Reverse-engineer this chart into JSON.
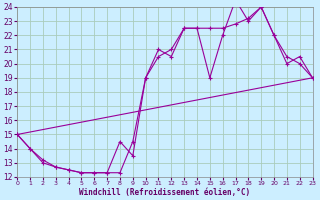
{
  "xlabel": "Windchill (Refroidissement éolien,°C)",
  "bg_color": "#cceeff",
  "grid_color": "#aaccbb",
  "line_color": "#990099",
  "xlim": [
    0,
    23
  ],
  "ylim": [
    12,
    24
  ],
  "xticks": [
    0,
    1,
    2,
    3,
    4,
    5,
    6,
    7,
    8,
    9,
    10,
    11,
    12,
    13,
    14,
    15,
    16,
    17,
    18,
    19,
    20,
    21,
    22,
    23
  ],
  "yticks": [
    12,
    13,
    14,
    15,
    16,
    17,
    18,
    19,
    20,
    21,
    22,
    23,
    24
  ],
  "series1_x": [
    0,
    1,
    2,
    3,
    4,
    5,
    6,
    7,
    8,
    9,
    10,
    11,
    12,
    13,
    14,
    15,
    16,
    17,
    18,
    19,
    20,
    21,
    22,
    23
  ],
  "series1_y": [
    15,
    14,
    13.2,
    12.7,
    12.5,
    12.3,
    12.3,
    12.3,
    12.3,
    14.5,
    19,
    20.5,
    21,
    22.5,
    22.5,
    22.5,
    22.5,
    22.8,
    23.2,
    24,
    22,
    20.5,
    20,
    19
  ],
  "series2_x": [
    0,
    1,
    2,
    3,
    4,
    5,
    6,
    7,
    8,
    9,
    10,
    11,
    12,
    13,
    14,
    15,
    16,
    17,
    18,
    19,
    20,
    21,
    22,
    23
  ],
  "series2_y": [
    15,
    14,
    13,
    12.7,
    12.5,
    12.3,
    12.3,
    12.3,
    14.5,
    13.5,
    19,
    21,
    20.5,
    22.5,
    22.5,
    19,
    22,
    24.5,
    23,
    24,
    22,
    20,
    20.5,
    19
  ],
  "series3_x": [
    0,
    23
  ],
  "series3_y": [
    15,
    19
  ]
}
